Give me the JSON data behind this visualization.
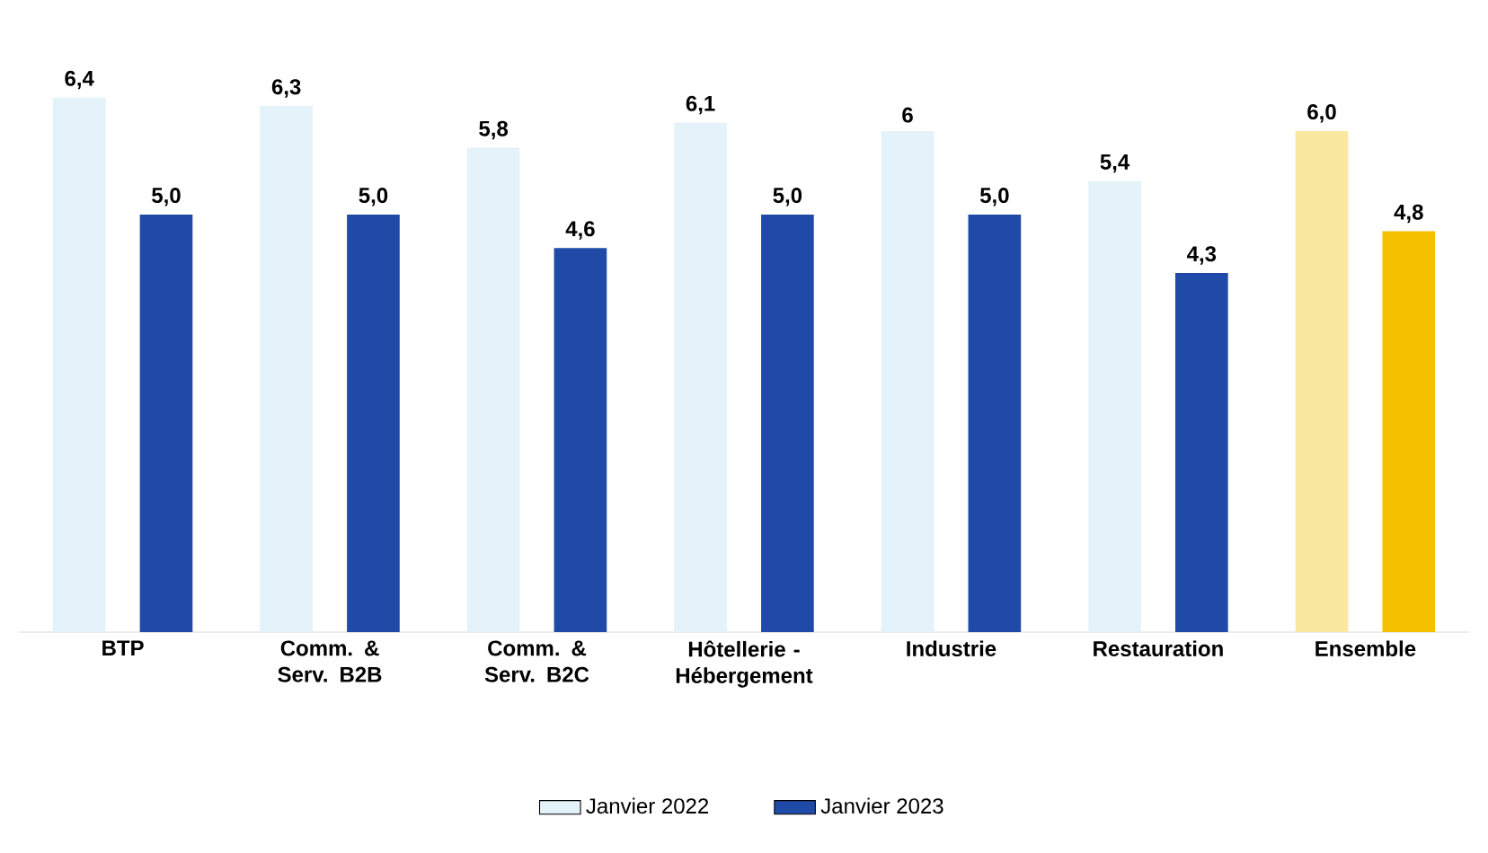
{
  "chart_data": {
    "type": "bar",
    "categories": [
      "BTP",
      "Comm. & Serv. B2B",
      "Comm. & Serv. B2C",
      "Hôtellerie - Hébergement",
      "Industrie",
      "Restauration",
      "Ensemble"
    ],
    "series": [
      {
        "name": "Janvier 2022",
        "color": "#e4f2f9",
        "colors": [
          "#e4f2f9",
          "#e4f2f9",
          "#e4f2f9",
          "#e4f2f9",
          "#e4f2f9",
          "#e4f2f9",
          "#fbe8a0"
        ],
        "values": [
          6.4,
          6.3,
          5.8,
          6.1,
          6,
          5.4,
          6.0
        ],
        "value_labels": [
          "6,4",
          "6,3",
          "5,8",
          "6,1",
          "6",
          "5,4",
          "6,0"
        ]
      },
      {
        "name": "Janvier 2023",
        "color": "#1f4aa8",
        "colors": [
          "#1f4aa8",
          "#1f4aa8",
          "#1f4aa8",
          "#1f4aa8",
          "#1f4aa8",
          "#1f4aa8",
          "#f5c000"
        ],
        "values": [
          5.0,
          5.0,
          4.6,
          5.0,
          5.0,
          4.3,
          4.8
        ],
        "value_labels": [
          "5,0",
          "5,0",
          "4,6",
          "5,0",
          "5,0",
          "4,3",
          "4,8"
        ]
      }
    ],
    "legend": "bottom"
  }
}
